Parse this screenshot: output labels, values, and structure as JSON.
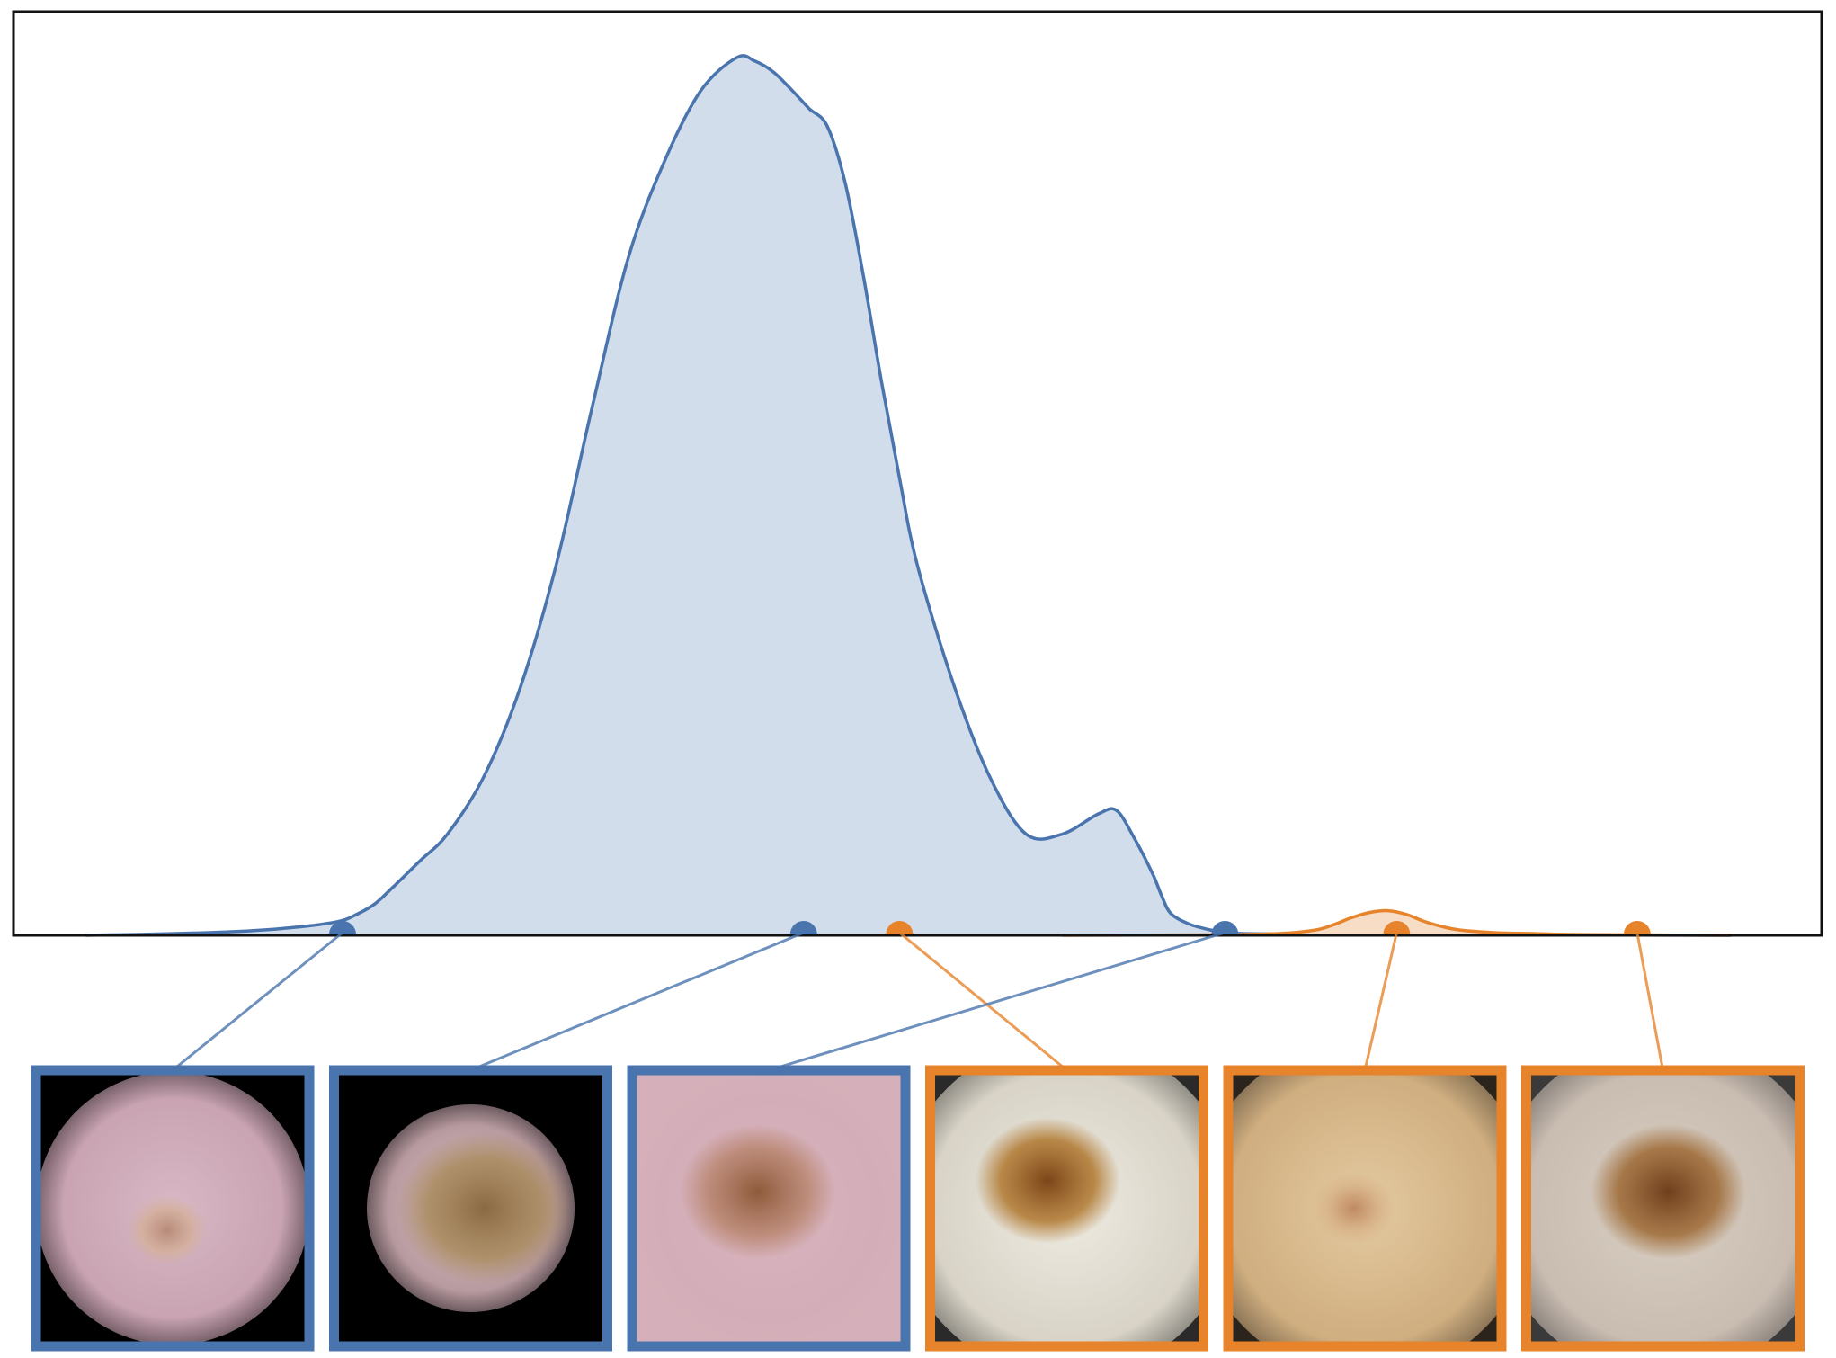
{
  "chart_data": {
    "type": "area",
    "title": "",
    "xlabel": "",
    "ylabel": "",
    "xlim": [
      0,
      100
    ],
    "ylim": [
      0,
      1
    ],
    "grid": false,
    "legend": "none",
    "series": [
      {
        "color": "#4a74ad",
        "fill": "#d2ddeb",
        "x": [
          4,
          9,
          13,
          16,
          18,
          19,
          20,
          21,
          22.5,
          24,
          26,
          28,
          30,
          32,
          34,
          36,
          38,
          40,
          41,
          42,
          43,
          44,
          45,
          46,
          47,
          48,
          49,
          50,
          52,
          54,
          56,
          58,
          60,
          61,
          62,
          63,
          63.5,
          64,
          65,
          66,
          66.5,
          67,
          68,
          70,
          74,
          80,
          90,
          95
        ],
        "values": [
          0,
          0.002,
          0.005,
          0.01,
          0.016,
          0.024,
          0.036,
          0.055,
          0.085,
          0.115,
          0.18,
          0.28,
          0.42,
          0.6,
          0.77,
          0.88,
          0.96,
          0.998,
          0.994,
          0.982,
          0.962,
          0.94,
          0.92,
          0.855,
          0.75,
          0.63,
          0.52,
          0.42,
          0.285,
          0.18,
          0.115,
          0.115,
          0.138,
          0.142,
          0.11,
          0.07,
          0.045,
          0.025,
          0.013,
          0.007,
          0.005,
          0.003,
          0.002,
          0.0015,
          0.001,
          0.0005,
          0.0002,
          0
        ]
      },
      {
        "color": "#e6832b",
        "fill": "#f7dcc6",
        "x": [
          58,
          66,
          70,
          72,
          73,
          74,
          75,
          76,
          77,
          78,
          79,
          80,
          82,
          84,
          86,
          90,
          95
        ],
        "values": [
          0,
          0.0005,
          0.002,
          0.006,
          0.012,
          0.02,
          0.026,
          0.028,
          0.024,
          0.016,
          0.01,
          0.006,
          0.003,
          0.002,
          0.001,
          0.0005,
          0
        ]
      }
    ],
    "markers": [
      {
        "x": 18.2,
        "series": 0,
        "color": "#4a74ad",
        "thumb": 0
      },
      {
        "x": 43.7,
        "series": 0,
        "color": "#4a74ad",
        "thumb": 1
      },
      {
        "x": 49,
        "series": 1,
        "color": "#e6832b",
        "thumb": 3
      },
      {
        "x": 67,
        "series": 0,
        "color": "#4a74ad",
        "thumb": 2
      },
      {
        "x": 76.5,
        "series": 1,
        "color": "#e6832b",
        "thumb": 4
      },
      {
        "x": 89.8,
        "series": 1,
        "color": "#e6832b",
        "thumb": 5
      }
    ],
    "thumbnails": [
      {
        "border": "#4a74ad",
        "icon": "dermoscopy-lesion-image"
      },
      {
        "border": "#4a74ad",
        "icon": "dermoscopy-lesion-image"
      },
      {
        "border": "#4a74ad",
        "icon": "dermoscopy-lesion-image"
      },
      {
        "border": "#e6832b",
        "icon": "dermoscopy-lesion-image"
      },
      {
        "border": "#e6832b",
        "icon": "dermoscopy-lesion-image"
      },
      {
        "border": "#e6832b",
        "icon": "dermoscopy-lesion-image"
      }
    ]
  }
}
